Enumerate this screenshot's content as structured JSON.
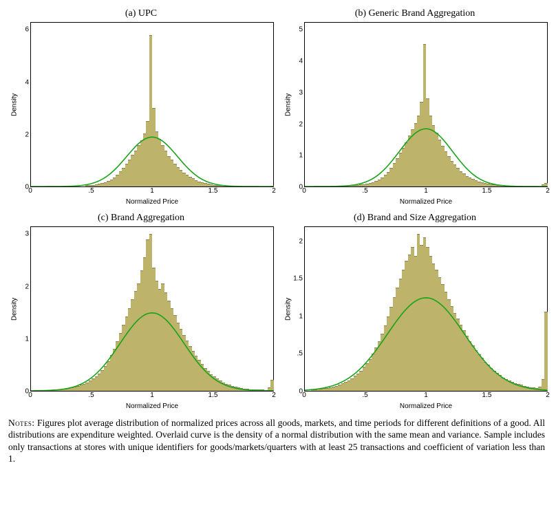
{
  "grid": {
    "cols": 2,
    "rows": 2
  },
  "panels": [
    {
      "id": "a",
      "title": "(a) UPC",
      "type": "histogram+normal",
      "xlabel": "Normalized Price",
      "ylabel": "Density",
      "xlim": [
        0,
        2
      ],
      "ylim": [
        0,
        6.3
      ],
      "xticks": [
        0,
        0.5,
        1,
        1.5,
        2
      ],
      "xticklabels": [
        "0",
        ".5",
        "1",
        "1.5",
        "2"
      ],
      "yticks_raw": [
        0,
        2,
        4,
        6
      ],
      "yticklabels": [
        "0",
        "2",
        "4",
        "6"
      ],
      "bar_color": "#bdb36b",
      "bar_edge": "#8a8452",
      "curve_color": "#19a319",
      "background": "#ffffff",
      "border_color": "#000000",
      "label_fontsize": 10,
      "title_fontsize": 14,
      "normal": {
        "mu": 1.0,
        "sigma": 0.21,
        "peak": 1.9
      },
      "bin_count": 80,
      "values": [
        0,
        0,
        0,
        0,
        0,
        0,
        0,
        0,
        0,
        0,
        0,
        0,
        0,
        0,
        0,
        0,
        0,
        0,
        0.02,
        0.03,
        0.04,
        0.05,
        0.07,
        0.1,
        0.14,
        0.18,
        0.25,
        0.33,
        0.42,
        0.55,
        0.7,
        0.85,
        1.0,
        1.2,
        1.35,
        1.55,
        1.75,
        2.0,
        2.5,
        5.8,
        3.0,
        2.1,
        1.8,
        1.55,
        1.35,
        1.15,
        1.0,
        0.85,
        0.72,
        0.6,
        0.5,
        0.42,
        0.35,
        0.28,
        0.22,
        0.17,
        0.13,
        0.1,
        0.08,
        0.06,
        0.04,
        0.03,
        0.02,
        0.015,
        0.01,
        0.01,
        0.005,
        0.005,
        0,
        0,
        0,
        0,
        0,
        0,
        0,
        0,
        0,
        0,
        0,
        0.01
      ]
    },
    {
      "id": "b",
      "title": "(b) Generic Brand Aggregation",
      "type": "histogram+normal",
      "xlabel": "Normalized Price",
      "ylabel": "Density",
      "xlim": [
        0,
        2
      ],
      "ylim": [
        0,
        5.25
      ],
      "xticks": [
        0,
        0.5,
        1,
        1.5,
        2
      ],
      "xticklabels": [
        "0",
        ".5",
        "1",
        "1.5",
        "2"
      ],
      "yticks_raw": [
        0,
        1,
        2,
        3,
        4,
        5
      ],
      "yticklabels": [
        "0",
        "1",
        "2",
        "3",
        "4",
        "5"
      ],
      "bar_color": "#bdb36b",
      "bar_edge": "#8a8452",
      "curve_color": "#19a319",
      "background": "#ffffff",
      "border_color": "#000000",
      "label_fontsize": 10,
      "title_fontsize": 14,
      "normal": {
        "mu": 1.0,
        "sigma": 0.22,
        "peak": 1.85
      },
      "bin_count": 80,
      "values": [
        0,
        0,
        0,
        0,
        0,
        0,
        0,
        0,
        0,
        0,
        0,
        0,
        0.005,
        0.01,
        0.015,
        0.02,
        0.025,
        0.03,
        0.04,
        0.05,
        0.07,
        0.09,
        0.12,
        0.16,
        0.2,
        0.27,
        0.35,
        0.45,
        0.58,
        0.72,
        0.88,
        1.05,
        1.22,
        1.4,
        1.6,
        1.8,
        2.0,
        2.25,
        2.7,
        4.55,
        2.8,
        2.25,
        1.95,
        1.7,
        1.48,
        1.28,
        1.1,
        0.95,
        0.8,
        0.68,
        0.57,
        0.47,
        0.39,
        0.32,
        0.26,
        0.21,
        0.17,
        0.13,
        0.1,
        0.08,
        0.06,
        0.05,
        0.04,
        0.03,
        0.02,
        0.015,
        0.01,
        0.01,
        0.01,
        0.005,
        0.005,
        0,
        0,
        0,
        0,
        0,
        0,
        0,
        0.04,
        0.08
      ]
    },
    {
      "id": "c",
      "title": "(c) Brand Aggregation",
      "type": "histogram+normal",
      "xlabel": "Normalized Price",
      "ylabel": "Density",
      "xlim": [
        0,
        2
      ],
      "ylim": [
        0,
        3.15
      ],
      "xticks": [
        0,
        0.5,
        1,
        1.5,
        2
      ],
      "xticklabels": [
        "0",
        ".5",
        "1",
        "1.5",
        "2"
      ],
      "yticks_raw": [
        0,
        1,
        2,
        3
      ],
      "yticklabels": [
        "0",
        "1",
        "2",
        "3"
      ],
      "bar_color": "#bdb36b",
      "bar_edge": "#8a8452",
      "curve_color": "#19a319",
      "background": "#ffffff",
      "border_color": "#000000",
      "label_fontsize": 10,
      "title_fontsize": 14,
      "normal": {
        "mu": 1.0,
        "sigma": 0.265,
        "peak": 1.5
      },
      "bin_count": 80,
      "values": [
        0,
        0,
        0,
        0,
        0,
        0,
        0.005,
        0.01,
        0.015,
        0.02,
        0.025,
        0.03,
        0.04,
        0.05,
        0.065,
        0.08,
        0.1,
        0.12,
        0.15,
        0.18,
        0.22,
        0.27,
        0.32,
        0.39,
        0.47,
        0.56,
        0.67,
        0.8,
        0.94,
        1.1,
        1.26,
        1.42,
        1.58,
        1.75,
        1.9,
        2.05,
        2.3,
        2.55,
        2.9,
        3.0,
        2.35,
        2.1,
        1.95,
        2.05,
        1.88,
        1.72,
        1.58,
        1.44,
        1.3,
        1.18,
        1.06,
        0.95,
        0.85,
        0.75,
        0.66,
        0.58,
        0.5,
        0.43,
        0.37,
        0.31,
        0.26,
        0.22,
        0.18,
        0.15,
        0.12,
        0.1,
        0.08,
        0.065,
        0.05,
        0.04,
        0.03,
        0.025,
        0.02,
        0.015,
        0.01,
        0.01,
        0.01,
        0.005,
        0.05,
        0.2
      ]
    },
    {
      "id": "d",
      "title": "(d) Brand and Size Aggregation",
      "type": "histogram+normal",
      "xlabel": "Normalized Price",
      "ylabel": "Density",
      "xlim": [
        0,
        2
      ],
      "ylim": [
        0,
        2.2
      ],
      "xticks": [
        0,
        0.5,
        1,
        1.5,
        2
      ],
      "xticklabels": [
        "0",
        ".5",
        "1",
        "1.5",
        "2"
      ],
      "yticks_raw": [
        0,
        0.5,
        1,
        1.5,
        2
      ],
      "yticklabels": [
        "0",
        ".5",
        "1",
        "1.5",
        "2"
      ],
      "bar_color": "#bdb36b",
      "bar_edge": "#8a8452",
      "curve_color": "#19a319",
      "background": "#ffffff",
      "border_color": "#000000",
      "label_fontsize": 10,
      "title_fontsize": 14,
      "normal": {
        "mu": 1.0,
        "sigma": 0.32,
        "peak": 1.25
      },
      "bin_count": 80,
      "values": [
        0,
        0,
        0.005,
        0.01,
        0.015,
        0.02,
        0.025,
        0.03,
        0.04,
        0.05,
        0.06,
        0.075,
        0.09,
        0.11,
        0.13,
        0.16,
        0.19,
        0.22,
        0.26,
        0.31,
        0.36,
        0.42,
        0.49,
        0.57,
        0.66,
        0.76,
        0.87,
        0.99,
        1.12,
        1.25,
        1.38,
        1.5,
        1.62,
        1.74,
        1.82,
        1.92,
        1.8,
        2.1,
        1.95,
        2.05,
        1.92,
        1.8,
        1.7,
        1.62,
        1.52,
        1.42,
        1.32,
        1.22,
        1.13,
        1.04,
        0.96,
        0.88,
        0.8,
        0.73,
        0.66,
        0.6,
        0.54,
        0.48,
        0.43,
        0.38,
        0.34,
        0.3,
        0.26,
        0.23,
        0.2,
        0.17,
        0.15,
        0.13,
        0.11,
        0.095,
        0.08,
        0.07,
        0.06,
        0.05,
        0.04,
        0.035,
        0.03,
        0.05,
        0.15,
        1.05
      ]
    }
  ],
  "notes_label": "Notes:",
  "notes_body": " Figures plot average distribution of normalized prices across all goods, markets, and time periods for different definitions of a good. All distributions are expenditure weighted. Overlaid curve is the density of a normal distribution with the same mean and variance. Sample includes only transactions at stores with unique identifiers for goods/markets/quarters with at least 25 transactions and coefficient of variation less than 1."
}
